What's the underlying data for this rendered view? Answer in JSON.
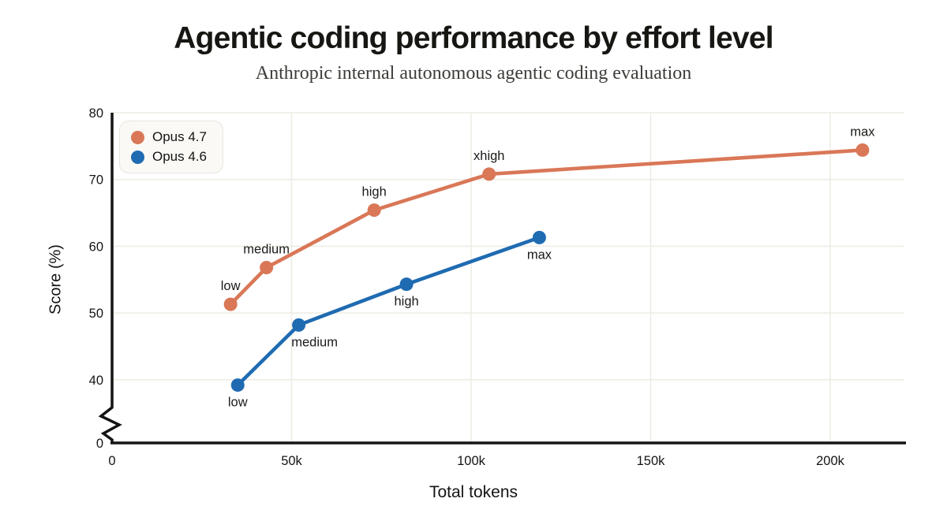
{
  "chart_data": {
    "type": "line",
    "title": "Agentic coding performance by effort level",
    "subtitle": "Anthropic internal autonomous agentic coding evaluation",
    "xlabel": "Total tokens",
    "ylabel": "Score (%)",
    "grid": true,
    "axis_break": true,
    "legend_position": "top-left",
    "x_axis": {
      "range_tokens": [
        0,
        220000
      ],
      "ticks": [
        {
          "value": 0,
          "label": "0"
        },
        {
          "value": 50000,
          "label": "50k"
        },
        {
          "value": 100000,
          "label": "100k"
        },
        {
          "value": 150000,
          "label": "150k"
        },
        {
          "value": 200000,
          "label": "200k"
        }
      ]
    },
    "y_axis": {
      "visible_range": [
        40,
        80
      ],
      "break_between": [
        0,
        40
      ],
      "ticks": [
        {
          "value": 80,
          "label": "80"
        },
        {
          "value": 70,
          "label": "70"
        },
        {
          "value": 60,
          "label": "60"
        },
        {
          "value": 50,
          "label": "50"
        },
        {
          "value": 40,
          "label": "40"
        },
        {
          "value": 0,
          "label": "0"
        }
      ]
    },
    "series": [
      {
        "name": "Opus 4.7",
        "color": "#D97757",
        "label_side": "above",
        "points": [
          {
            "tokens": 33000,
            "score": 51.3,
            "label": "low"
          },
          {
            "tokens": 43000,
            "score": 56.8,
            "label": "medium"
          },
          {
            "tokens": 73000,
            "score": 65.4,
            "label": "high"
          },
          {
            "tokens": 105000,
            "score": 70.8,
            "label": "xhigh"
          },
          {
            "tokens": 209000,
            "score": 74.4,
            "label": "max"
          }
        ]
      },
      {
        "name": "Opus 4.6",
        "color": "#1F6BB2",
        "label_side": "below",
        "points": [
          {
            "tokens": 35000,
            "score": 39.2,
            "label": "low"
          },
          {
            "tokens": 52000,
            "score": 48.2,
            "label": "medium",
            "label_dx": 20
          },
          {
            "tokens": 82000,
            "score": 54.3,
            "label": "high"
          },
          {
            "tokens": 119000,
            "score": 61.3,
            "label": "max"
          }
        ]
      }
    ],
    "style": {
      "grid_color": "#EDEBE3",
      "axis_color": "#141413",
      "legend_bg": "#FAF9F5",
      "legend_border": "#E9E6DD"
    }
  }
}
